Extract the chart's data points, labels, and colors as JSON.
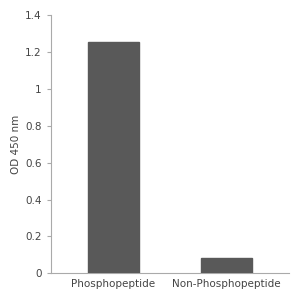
{
  "categories": [
    "Phosphopeptide",
    "Non-Phosphopeptide"
  ],
  "values": [
    1.255,
    0.085
  ],
  "bar_color": "#595959",
  "ylabel": "OD 450 nm",
  "ylim": [
    0,
    1.4
  ],
  "yticks": [
    0,
    0.2,
    0.4,
    0.6,
    0.8,
    1.0,
    1.2,
    1.4
  ],
  "ytick_labels": [
    "0",
    "0.2",
    "0.4",
    "0.6",
    "0.8",
    "1",
    "1.2",
    "1.4"
  ],
  "bar_width": 0.45,
  "background_color": "#ffffff",
  "label_fontsize": 7.5,
  "tick_fontsize": 7.5,
  "ylabel_fontsize": 7.5,
  "spine_color": "#aaaaaa",
  "tick_color": "#444444"
}
